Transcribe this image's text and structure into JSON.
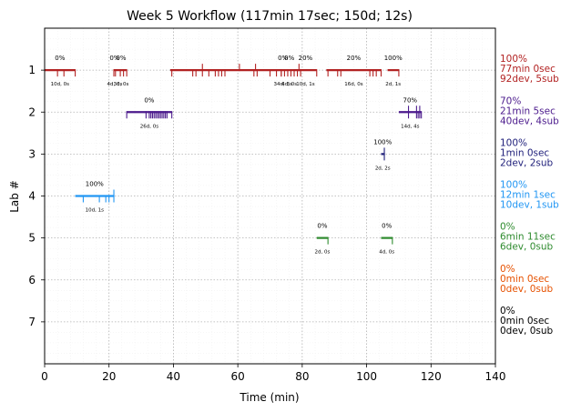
{
  "chart_data": {
    "type": "timeline",
    "title": "Week 5 Workflow (117min 17sec; 150d; 12s)",
    "xlabel": "Time (min)",
    "ylabel": "Lab #",
    "xlim": [
      0,
      140
    ],
    "ylim": [
      8,
      0
    ],
    "xticks": [
      "0",
      "20",
      "40",
      "60",
      "80",
      "100",
      "120",
      "140"
    ],
    "yticks": [
      "1",
      "2",
      "3",
      "4",
      "5",
      "6",
      "7"
    ],
    "grid": true,
    "lanes": [
      {
        "lab": 1,
        "color": "#b22222",
        "summary": [
          "100%",
          "77min 0sec",
          "92dev, 5sub"
        ],
        "segments": [
          {
            "start": 0,
            "end": 9.5,
            "pct": "0%",
            "label": "10d, 0s",
            "commits": [
              4,
              6,
              9.5
            ]
          },
          {
            "start": 21.5,
            "end": 22,
            "pct": "0%",
            "label": "4d, 0s",
            "commits": [
              21.5,
              22
            ]
          },
          {
            "start": 22,
            "end": 25.5,
            "pct": "0%",
            "label": "3d, 0s",
            "commits": [
              23.5,
              24.5,
              25.5
            ]
          },
          {
            "start": 39,
            "end": 73.5,
            "pct": "",
            "label": "",
            "commits": [
              39.5,
              46,
              47,
              49,
              51,
              53,
              54,
              55,
              56,
              65,
              66,
              70,
              72,
              73.5
            ]
          },
          {
            "start": 73.5,
            "end": 74.5,
            "pct": "0%",
            "label": "34d, 3s",
            "commits": [
              73.5,
              74.5
            ]
          },
          {
            "start": 74.5,
            "end": 77.5,
            "pct": "0%",
            "label": "4d, 0s",
            "commits": [
              75.5,
              76.5,
              77.5
            ]
          },
          {
            "start": 77.5,
            "end": 84.5,
            "pct": "20%",
            "label": "10d, 1s",
            "commits": [
              78.5,
              79.5,
              84.5
            ]
          },
          {
            "start": 87.5,
            "end": 104.5,
            "pct": "20%",
            "label": "16d, 0s",
            "commits": [
              88,
              91,
              92,
              101,
              102,
              103,
              104.5
            ]
          },
          {
            "start": 106.5,
            "end": 110,
            "pct": "100%",
            "label": "2d, 1s",
            "commits": [
              110
            ]
          }
        ],
        "markers": [
          49,
          60.5,
          65.5,
          79
        ]
      },
      {
        "lab": 2,
        "color": "#4b1a8c",
        "summary": [
          "70%",
          "21min 5sec",
          "40dev, 4sub"
        ],
        "segments": [
          {
            "start": 25.5,
            "end": 39.5,
            "pct": "0%",
            "label": "26d, 0s",
            "commits": [
              25.5,
              31.5,
              32.5,
              33,
              33.5,
              34,
              34.5,
              35,
              35.5,
              36,
              36.5,
              37,
              37.5,
              38,
              39.5
            ]
          },
          {
            "start": 110,
            "end": 117,
            "pct": "70%",
            "label": "14d, 4s",
            "commits": [
              113,
              115.5,
              116,
              116.5,
              117
            ]
          }
        ],
        "markers": [
          113,
          115.5,
          116.5
        ]
      },
      {
        "lab": 3,
        "color": "#1f1f7a",
        "summary": [
          "100%",
          "1min 0sec",
          "2dev, 2sub"
        ],
        "segments": [
          {
            "start": 104.5,
            "end": 105.5,
            "pct": "100%",
            "label": "2d, 2s",
            "commits": [
              105.5
            ]
          }
        ],
        "markers": [
          105.5
        ]
      },
      {
        "lab": 4,
        "color": "#2196f3",
        "summary": [
          "100%",
          "12min 1sec",
          "10dev, 1sub"
        ],
        "segments": [
          {
            "start": 9.5,
            "end": 21.5,
            "pct": "100%",
            "label": "10d, 1s",
            "commits": [
              12,
              17,
              19,
              20,
              21.5
            ]
          }
        ],
        "markers": [
          21.5
        ]
      },
      {
        "lab": 5,
        "color": "#2e8b2e",
        "summary": [
          "0%",
          "6min 11sec",
          "6dev, 0sub"
        ],
        "segments": [
          {
            "start": 84.5,
            "end": 88,
            "pct": "0%",
            "label": "2d, 0s",
            "commits": [
              88
            ]
          },
          {
            "start": 104.5,
            "end": 108,
            "pct": "0%",
            "label": "4d, 0s",
            "commits": [
              108
            ]
          }
        ],
        "markers": []
      },
      {
        "lab": 6,
        "color": "#e65100",
        "summary": [
          "0%",
          "0min 0sec",
          "0dev, 0sub"
        ],
        "segments": [],
        "markers": []
      },
      {
        "lab": 7,
        "color": "#000000",
        "summary": [
          "0%",
          "0min 0sec",
          "0dev, 0sub"
        ],
        "segments": [],
        "markers": []
      }
    ]
  }
}
